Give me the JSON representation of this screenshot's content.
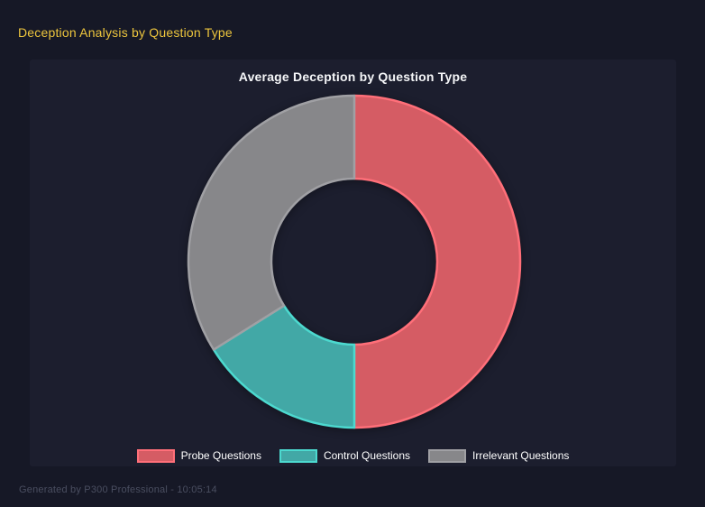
{
  "page": {
    "title": "Deception Analysis by Question Type",
    "footer": "Generated by P300 Professional - 10:05:14"
  },
  "colors": {
    "page_background": "#161826",
    "panel_background": "#1C1E2E",
    "page_title": "#EEC63D",
    "chart_title": "#F5F6F8",
    "legend_text": "#FFFFFF",
    "footer_text": "#4A4E60"
  },
  "chart_data": {
    "type": "pie",
    "variant": "doughnut",
    "title": "Average Deception by Question Type",
    "categories": [
      "Probe Questions",
      "Control Questions",
      "Irrelevant Questions"
    ],
    "values": [
      50,
      16.1,
      33.9
    ],
    "values_note": "percent share of ring, estimated from arc angles (180deg / 58deg / 122deg)",
    "start_angle_deg": 0,
    "clockwise": true,
    "inner_radius_ratio": 0.5,
    "legend_position": "bottom",
    "segments": [
      {
        "label": "Probe Questions",
        "fill": "#D55C64",
        "border": "#FF6F79"
      },
      {
        "label": "Control Questions",
        "fill": "#42A8A6",
        "border": "#4CD9CF"
      },
      {
        "label": "Irrelevant Questions",
        "fill": "#87878A",
        "border": "#A0A0A4"
      }
    ]
  }
}
